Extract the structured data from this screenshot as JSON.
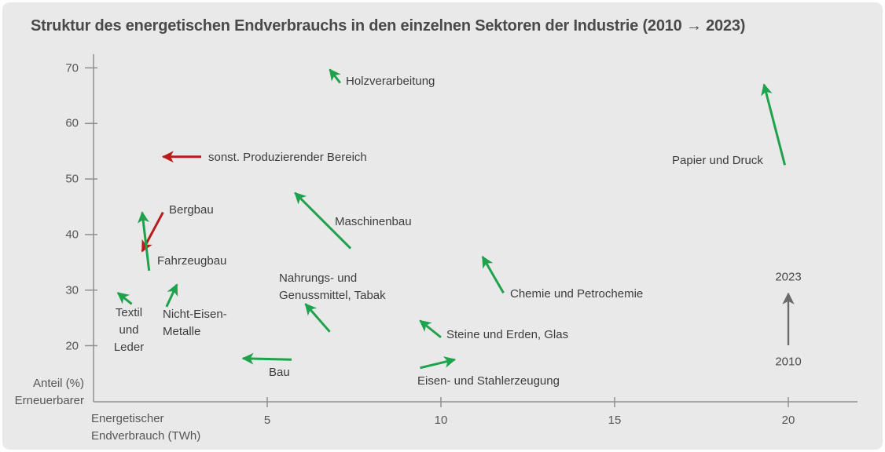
{
  "title": "Struktur des energetischen Endverbrauchs in den einzelnen Sektoren der Industrie (2010 → 2023)",
  "colors": {
    "background": "#e9e9e9",
    "increase_arrow": "#1ea24c",
    "decrease_arrow": "#b91c1c",
    "legend_arrow": "#6a6a6a",
    "axis_line": "#8f8f8f",
    "title_text": "#4a4a4a",
    "label_text": "#3d3d3d"
  },
  "legend": {
    "top_label": "2023",
    "bottom_label": "2010"
  },
  "axes": {
    "x": {
      "title_lines": [
        "Energetischer",
        "Endverbrauch (TWh)"
      ],
      "ticks": [
        5,
        10,
        15,
        20
      ]
    },
    "y": {
      "title_lines": [
        "Anteil (%)",
        "Erneuerbarer"
      ],
      "ticks": [
        20,
        30,
        40,
        50,
        60,
        70
      ]
    }
  },
  "chart_data": {
    "type": "scatter",
    "subtype": "arrow-change-plot",
    "title": "Struktur des energetischen Endverbrauchs in den einzelnen Sektoren der Industrie (2010 → 2023)",
    "xlabel": "Energetischer Endverbrauch (TWh)",
    "ylabel": "Anteil (%) Erneuerbarer",
    "xlim": [
      0,
      22
    ],
    "ylim": [
      10,
      72
    ],
    "x_ticks": [
      5,
      10,
      15,
      20
    ],
    "y_ticks": [
      20,
      30,
      40,
      50,
      60,
      70
    ],
    "grid": false,
    "arrow_semantics": "Pfeil von Position 2010 zu Position 2023",
    "sectors": [
      {
        "name": "Holzverarbeitung",
        "label_lines": [
          "Holzverarbeitung"
        ],
        "trend": "increase",
        "from": {
          "twh": 7.1,
          "share_pct": 67.3
        },
        "to": {
          "twh": 6.8,
          "share_pct": 69.7
        }
      },
      {
        "name": "sonst. Produzierender Bereich",
        "label_lines": [
          "sonst. Produzierender Bereich"
        ],
        "trend": "decrease",
        "from": {
          "twh": 3.1,
          "share_pct": 54.0
        },
        "to": {
          "twh": 2.0,
          "share_pct": 54.0
        }
      },
      {
        "name": "Bergbau",
        "label_lines": [
          "Bergbau"
        ],
        "trend": "decrease",
        "from": {
          "twh": 2.0,
          "share_pct": 44.0
        },
        "to": {
          "twh": 1.4,
          "share_pct": 37.0
        }
      },
      {
        "name": "Fahrzeugbau",
        "label_lines": [
          "Fahrzeugbau"
        ],
        "trend": "increase",
        "from": {
          "twh": 1.6,
          "share_pct": 33.5
        },
        "to": {
          "twh": 1.4,
          "share_pct": 44.0
        }
      },
      {
        "name": "Textil und Leder",
        "label_lines": [
          "Textil",
          "und",
          "Leder"
        ],
        "trend": "increase",
        "from": {
          "twh": 1.1,
          "share_pct": 27.5
        },
        "to": {
          "twh": 0.7,
          "share_pct": 29.5
        }
      },
      {
        "name": "Nicht-Eisen-Metalle",
        "label_lines": [
          "Nicht-Eisen-",
          "Metalle"
        ],
        "trend": "increase",
        "from": {
          "twh": 2.1,
          "share_pct": 27.0
        },
        "to": {
          "twh": 2.4,
          "share_pct": 31.0
        }
      },
      {
        "name": "Maschinenbau",
        "label_lines": [
          "Maschinenbau"
        ],
        "trend": "increase",
        "from": {
          "twh": 7.4,
          "share_pct": 37.5
        },
        "to": {
          "twh": 5.8,
          "share_pct": 47.5
        }
      },
      {
        "name": "Nahrungs- und Genussmittel, Tabak",
        "label_lines": [
          "Nahrungs- und",
          "Genussmittel, Tabak"
        ],
        "trend": "increase",
        "from": {
          "twh": 6.8,
          "share_pct": 22.5
        },
        "to": {
          "twh": 6.1,
          "share_pct": 27.5
        }
      },
      {
        "name": "Bau",
        "label_lines": [
          "Bau"
        ],
        "trend": "increase",
        "from": {
          "twh": 5.7,
          "share_pct": 17.5
        },
        "to": {
          "twh": 4.3,
          "share_pct": 17.7
        }
      },
      {
        "name": "Steine und Erden, Glas",
        "label_lines": [
          "Steine und Erden, Glas"
        ],
        "trend": "increase",
        "from": {
          "twh": 10.0,
          "share_pct": 21.5
        },
        "to": {
          "twh": 9.4,
          "share_pct": 24.5
        }
      },
      {
        "name": "Eisen- und Stahlerzeugung",
        "label_lines": [
          "Eisen- und Stahlerzeugung"
        ],
        "trend": "increase",
        "from": {
          "twh": 9.4,
          "share_pct": 16.0
        },
        "to": {
          "twh": 10.4,
          "share_pct": 17.5
        }
      },
      {
        "name": "Chemie und Petrochemie",
        "label_lines": [
          "Chemie und Petrochemie"
        ],
        "trend": "increase",
        "from": {
          "twh": 11.8,
          "share_pct": 29.5
        },
        "to": {
          "twh": 11.2,
          "share_pct": 36.0
        }
      },
      {
        "name": "Papier und Druck",
        "label_lines": [
          "Papier und Druck"
        ],
        "trend": "increase",
        "from": {
          "twh": 19.9,
          "share_pct": 52.5
        },
        "to": {
          "twh": 19.3,
          "share_pct": 67.0
        }
      }
    ],
    "legend": {
      "arrow_direction": "up",
      "start_year": "2010",
      "end_year": "2023"
    }
  }
}
